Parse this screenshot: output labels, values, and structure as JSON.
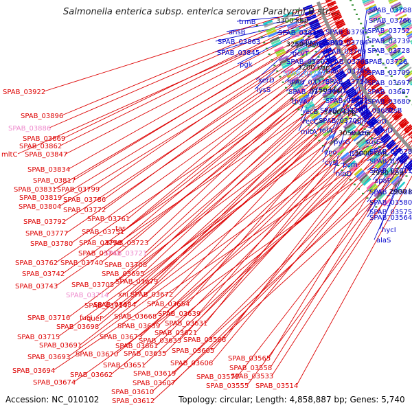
{
  "title": "Salmonella enterica subsp. enterica serovar Paratyphi B str....",
  "accession": "Accession: NC_010102",
  "topology": "Topology: circular; Length: 4,858,887 bp; Genes: 5,740",
  "colors": {
    "forward": "#0000cc",
    "reverse": "#dd0000",
    "highlight": "#55aaff",
    "pink": "#ee88cc",
    "ruler": "#909090",
    "tick": "#2a8a2a"
  },
  "ticks": [
    "3300 kbp",
    "3250 kbp",
    "3200 kbp",
    "3150 kbp",
    "3100 kbp",
    "3050 kbp",
    "3000 kbp",
    "2950 kbp",
    "2900 kbp"
  ],
  "forward_labels": [
    "trmB",
    "ansB",
    "SPAB_03863",
    "SPAB_03845",
    "pgk",
    "xerD",
    "lysS",
    "SPAB_03835",
    "SPAB_03822",
    "gcvT",
    "SPAB_03802",
    "SPAB_03785",
    "SPAB_03770",
    "SPAB_03755",
    "thyA",
    "recB",
    "recC",
    "mltA",
    "SPAB_03793",
    "SPAB_03784",
    "SPAB_03769",
    "SPAB_03764",
    "SPAB_03745",
    "SPAB_03734",
    "recD",
    "SPAB_03722",
    "SPAB_03711",
    "SPAB_03700",
    "relA",
    "pyrG",
    "eno",
    "cysJ",
    "nlpD",
    "SPAB_03788",
    "SPAB_03766",
    "SPAB_03752",
    "SPAB_03739",
    "SPAB_03728",
    "SPAB_03726",
    "SPAB_03709",
    "SPAB_03697",
    "SPAB_03687",
    "SPAB_03680",
    "ftsB",
    "SPAB_03682",
    "rumA",
    "mazG",
    "ispD",
    "surE",
    "truD",
    "ispF",
    "pcm",
    "SPAB_03628",
    "SPAB_03622",
    "SPAB_03611",
    "spaP",
    "SPAB_03588",
    "SPAB_03580",
    "SPAB_03575",
    "SPAB_03564",
    "hycI",
    "alaS"
  ],
  "reverse_labels": [
    "SPAB_03922",
    "SPAB_03896",
    "SPAB_03886",
    "SPAB_03869",
    "SPAB_03862",
    "mltC",
    "SPAB_03847",
    "SPAB_03834",
    "SPAB_03817",
    "SPAB_03831",
    "SPAB_03799",
    "SPAB_03819",
    "SPAB_03786",
    "SPAB_03804",
    "SPAB_03772",
    "SPAB_03792",
    "SPAB_03761",
    "SPAB_03777",
    "SPAB_03751",
    "SPAB_03780",
    "SPAB_03750",
    "SPAB_03723",
    "tas",
    "SPAB_03741",
    "SPAB_03721",
    "SPAB_03762",
    "SPAB_03740",
    "SPAB_03708",
    "SPAB_03742",
    "SPAB_03695",
    "SPAB_03705",
    "SPAB_03679",
    "SPAB_03743",
    "SPAB_03714",
    "xni",
    "SPAB_03672",
    "SPAB_03714",
    "SPAB_03684",
    "SPAB_03654",
    "SPAB_03716",
    "fucI",
    "SPAB_03698",
    "queF",
    "SPAB_03668",
    "SPAB_03639",
    "SPAB_03631",
    "SPAB_03715",
    "SPAB_03673",
    "SPAB_03659",
    "SPAB_03691",
    "SPAB_03661",
    "SPAB_03633",
    "SPAB_03621",
    "SPAB_03586",
    "SPAB_03693",
    "SPAB_03670",
    "SPAB_03635",
    "SPAB_03605",
    "SPAB_03651",
    "SPAB_03606",
    "SPAB_03565",
    "SPAB_03694",
    "SPAB_03662",
    "SPAB_03619",
    "SPAB_03558",
    "SPAB_03674",
    "SPAB_03607",
    "SPAB_03579",
    "SPAB_03533",
    "SPAB_03610",
    "SPAB_03555",
    "SPAB_03514",
    "SPAB_03612"
  ]
}
